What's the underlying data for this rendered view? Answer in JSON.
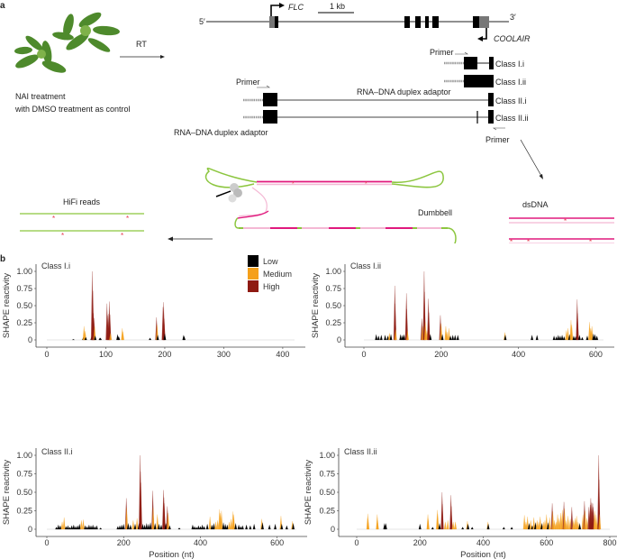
{
  "panel_a": {
    "label": "a",
    "gene_5prime": "5′",
    "gene_3prime": "3′",
    "flc_label": "FLC",
    "coolair_label": "COOLAIR",
    "scale_bar_label": "1 kb",
    "rt_label": "RT",
    "treatment_line1": "NAI treatment",
    "treatment_line2": "with DMSO treatment as control",
    "primer_label": "Primer",
    "adaptor_label": "RNA–DNA duplex adaptor",
    "classes": [
      "Class I.i",
      "Class I.ii",
      "Class II.i",
      "Class II.ii"
    ],
    "dsdna_label": "dsDNA",
    "dumbbell_label": "Dumbbell",
    "hifi_label": "HiFi reads",
    "colors": {
      "magenta": "#e0197d",
      "pink": "#f4b8d4",
      "green": "#8cc63f",
      "star": "#e8384f"
    }
  },
  "panel_b": {
    "label": "b"
  },
  "chart_data": [
    {
      "type": "bar",
      "title": "Class I.i",
      "xlabel": "",
      "ylabel": "SHAPE reactivity",
      "xlim": [
        0,
        420
      ],
      "ylim": [
        0,
        1.0
      ],
      "xticks": [
        "0",
        "100",
        "200",
        "300",
        "400"
      ],
      "yticks": [
        "0",
        "0.25",
        "0.50",
        "0.75",
        "1.00"
      ],
      "legend": {
        "placement": "top-right",
        "entries": [
          "Low",
          "Medium",
          "High"
        ]
      },
      "points": [
        [
          45,
          0.01
        ],
        [
          62,
          0.04
        ],
        [
          63,
          0.2
        ],
        [
          65,
          0.13
        ],
        [
          66,
          0.04
        ],
        [
          76,
          0.05
        ],
        [
          77,
          1.0
        ],
        [
          78,
          0.72
        ],
        [
          79,
          0.39
        ],
        [
          80,
          0.32
        ],
        [
          81,
          0.2
        ],
        [
          82,
          0.06
        ],
        [
          90,
          0.03
        ],
        [
          91,
          0.03
        ],
        [
          102,
          0.53
        ],
        [
          103,
          0.36
        ],
        [
          105,
          0.38
        ],
        [
          106,
          0.56
        ],
        [
          107,
          0.37
        ],
        [
          108,
          0.1
        ],
        [
          120,
          0.08
        ],
        [
          122,
          0.05
        ],
        [
          128,
          0.17
        ],
        [
          129,
          0.12
        ],
        [
          175,
          0.03
        ],
        [
          186,
          0.33
        ],
        [
          187,
          0.22
        ],
        [
          188,
          0.07
        ],
        [
          197,
          0.48
        ],
        [
          198,
          0.55
        ],
        [
          199,
          0.31
        ],
        [
          200,
          0.09
        ],
        [
          232,
          0.07
        ],
        [
          233,
          0.05
        ]
      ]
    },
    {
      "type": "bar",
      "title": "Class I.ii",
      "xlabel": "",
      "ylabel": "SHAPE reactivity",
      "xlim": [
        0,
        620
      ],
      "ylim": [
        0,
        1.0
      ],
      "xticks": [
        "0",
        "200",
        "400",
        "600"
      ],
      "yticks": [
        "0",
        "0.25",
        "0.50",
        "0.75",
        "1.00"
      ],
      "points": [
        [
          32,
          0.08
        ],
        [
          38,
          0.06
        ],
        [
          45,
          0.07
        ],
        [
          55,
          0.07
        ],
        [
          62,
          0.06
        ],
        [
          66,
          0.1
        ],
        [
          70,
          0.08
        ],
        [
          80,
          0.79
        ],
        [
          81,
          0.53
        ],
        [
          82,
          0.15
        ],
        [
          95,
          0.08
        ],
        [
          100,
          0.07
        ],
        [
          104,
          0.08
        ],
        [
          110,
          0.68
        ],
        [
          111,
          0.45
        ],
        [
          113,
          0.13
        ],
        [
          150,
          0.31
        ],
        [
          152,
          0.2
        ],
        [
          156,
          1.0
        ],
        [
          157,
          0.7
        ],
        [
          159,
          0.26
        ],
        [
          163,
          0.14
        ],
        [
          167,
          0.6
        ],
        [
          168,
          0.4
        ],
        [
          172,
          0.08
        ],
        [
          198,
          0.36
        ],
        [
          200,
          0.24
        ],
        [
          203,
          0.08
        ],
        [
          212,
          0.2
        ],
        [
          215,
          0.12
        ],
        [
          220,
          0.17
        ],
        [
          224,
          0.06
        ],
        [
          230,
          0.07
        ],
        [
          236,
          0.07
        ],
        [
          243,
          0.07
        ],
        [
          365,
          0.11
        ],
        [
          366,
          0.07
        ],
        [
          435,
          0.07
        ],
        [
          448,
          0.07
        ],
        [
          492,
          0.06
        ],
        [
          498,
          0.05
        ],
        [
          503,
          0.07
        ],
        [
          508,
          0.06
        ],
        [
          513,
          0.07
        ],
        [
          518,
          0.05
        ],
        [
          524,
          0.14
        ],
        [
          528,
          0.17
        ],
        [
          532,
          0.08
        ],
        [
          536,
          0.29
        ],
        [
          538,
          0.22
        ],
        [
          543,
          0.06
        ],
        [
          548,
          0.05
        ],
        [
          552,
          0.59
        ],
        [
          553,
          0.39
        ],
        [
          558,
          0.07
        ],
        [
          565,
          0.04
        ],
        [
          578,
          0.06
        ],
        [
          584,
          0.26
        ],
        [
          587,
          0.17
        ],
        [
          590,
          0.2
        ],
        [
          594,
          0.09
        ],
        [
          598,
          0.08
        ],
        [
          603,
          0.06
        ]
      ]
    },
    {
      "type": "bar",
      "title": "Class II.i",
      "xlabel": "Position (nt)",
      "ylabel": "SHAPE reactivity",
      "xlim": [
        0,
        650
      ],
      "ylim": [
        0,
        1.0
      ],
      "xticks": [
        "0",
        "200",
        "400",
        "600"
      ],
      "yticks": [
        "0",
        "0.25",
        "0.50",
        "0.75",
        "1.00"
      ],
      "points": [
        [
          25,
          0.03
        ],
        [
          30,
          0.06
        ],
        [
          35,
          0.05
        ],
        [
          40,
          0.1
        ],
        [
          45,
          0.16
        ],
        [
          50,
          0.04
        ],
        [
          55,
          0.05
        ],
        [
          60,
          0.03
        ],
        [
          65,
          0.05
        ],
        [
          70,
          0.06
        ],
        [
          75,
          0.04
        ],
        [
          80,
          0.05
        ],
        [
          85,
          0.07
        ],
        [
          90,
          0.12
        ],
        [
          95,
          0.13
        ],
        [
          100,
          0.05
        ],
        [
          105,
          0.04
        ],
        [
          110,
          0.06
        ],
        [
          115,
          0.05
        ],
        [
          120,
          0.06
        ],
        [
          125,
          0.04
        ],
        [
          130,
          0.05
        ],
        [
          140,
          0.02
        ],
        [
          185,
          0.04
        ],
        [
          190,
          0.05
        ],
        [
          195,
          0.06
        ],
        [
          200,
          0.07
        ],
        [
          207,
          0.42
        ],
        [
          208,
          0.29
        ],
        [
          212,
          0.08
        ],
        [
          218,
          0.06
        ],
        [
          225,
          0.12
        ],
        [
          230,
          0.07
        ],
        [
          235,
          0.15
        ],
        [
          240,
          0.08
        ],
        [
          243,
          1.0
        ],
        [
          244,
          0.78
        ],
        [
          245,
          0.63
        ],
        [
          250,
          0.07
        ],
        [
          255,
          0.06
        ],
        [
          260,
          0.08
        ],
        [
          265,
          0.07
        ],
        [
          270,
          0.09
        ],
        [
          276,
          0.52
        ],
        [
          277,
          0.29
        ],
        [
          282,
          0.08
        ],
        [
          288,
          0.2
        ],
        [
          292,
          0.07
        ],
        [
          298,
          0.06
        ],
        [
          304,
          0.53
        ],
        [
          305,
          0.43
        ],
        [
          306,
          0.35
        ],
        [
          310,
          0.08
        ],
        [
          314,
          0.31
        ],
        [
          316,
          0.22
        ],
        [
          320,
          0.05
        ],
        [
          345,
          0.02
        ],
        [
          380,
          0.06
        ],
        [
          385,
          0.04
        ],
        [
          390,
          0.03
        ],
        [
          395,
          0.05
        ],
        [
          400,
          0.04
        ],
        [
          405,
          0.06
        ],
        [
          410,
          0.04
        ],
        [
          418,
          0.07
        ],
        [
          425,
          0.17
        ],
        [
          430,
          0.06
        ],
        [
          435,
          0.08
        ],
        [
          440,
          0.1
        ],
        [
          445,
          0.12
        ],
        [
          450,
          0.27
        ],
        [
          452,
          0.22
        ],
        [
          455,
          0.25
        ],
        [
          460,
          0.09
        ],
        [
          465,
          0.07
        ],
        [
          470,
          0.06
        ],
        [
          475,
          0.1
        ],
        [
          480,
          0.14
        ],
        [
          485,
          0.24
        ],
        [
          487,
          0.2
        ],
        [
          492,
          0.08
        ],
        [
          500,
          0.06
        ],
        [
          505,
          0.04
        ],
        [
          510,
          0.05
        ],
        [
          520,
          0.06
        ],
        [
          530,
          0.05
        ],
        [
          540,
          0.07
        ],
        [
          560,
          0.14
        ],
        [
          562,
          0.09
        ],
        [
          580,
          0.06
        ],
        [
          595,
          0.07
        ],
        [
          610,
          0.18
        ],
        [
          612,
          0.07
        ],
        [
          625,
          0.05
        ],
        [
          640,
          0.11
        ],
        [
          642,
          0.08
        ]
      ]
    },
    {
      "type": "bar",
      "title": "Class II.ii",
      "xlabel": "Position (nt)",
      "ylabel": "SHAPE reactivity",
      "xlim": [
        0,
        800
      ],
      "ylim": [
        0,
        1.0
      ],
      "xticks": [
        "0",
        "200",
        "400",
        "600",
        "800"
      ],
      "yticks": [
        "0",
        "0.25",
        "0.50",
        "0.75",
        "1.00"
      ],
      "points": [
        [
          35,
          0.21
        ],
        [
          36,
          0.14
        ],
        [
          65,
          0.2
        ],
        [
          66,
          0.12
        ],
        [
          88,
          0.08
        ],
        [
          92,
          0.08
        ],
        [
          200,
          0.07
        ],
        [
          225,
          0.2
        ],
        [
          226,
          0.14
        ],
        [
          240,
          0.03
        ],
        [
          255,
          0.26
        ],
        [
          256,
          0.21
        ],
        [
          262,
          0.08
        ],
        [
          270,
          0.5
        ],
        [
          271,
          0.34
        ],
        [
          280,
          0.1
        ],
        [
          288,
          0.12
        ],
        [
          298,
          0.46
        ],
        [
          299,
          0.31
        ],
        [
          305,
          0.1
        ],
        [
          312,
          0.1
        ],
        [
          335,
          0.03
        ],
        [
          350,
          0.11
        ],
        [
          352,
          0.07
        ],
        [
          365,
          0.03
        ],
        [
          415,
          0.1
        ],
        [
          416,
          0.07
        ],
        [
          465,
          0.03
        ],
        [
          490,
          0.03
        ],
        [
          530,
          0.19
        ],
        [
          535,
          0.1
        ],
        [
          540,
          0.17
        ],
        [
          545,
          0.08
        ],
        [
          550,
          0.12
        ],
        [
          555,
          0.05
        ],
        [
          560,
          0.16
        ],
        [
          565,
          0.09
        ],
        [
          570,
          0.12
        ],
        [
          575,
          0.1
        ],
        [
          580,
          0.17
        ],
        [
          585,
          0.08
        ],
        [
          590,
          0.1
        ],
        [
          595,
          0.12
        ],
        [
          600,
          0.2
        ],
        [
          605,
          0.09
        ],
        [
          610,
          0.16
        ],
        [
          618,
          0.35
        ],
        [
          620,
          0.24
        ],
        [
          625,
          0.12
        ],
        [
          630,
          0.1
        ],
        [
          635,
          0.2
        ],
        [
          640,
          0.15
        ],
        [
          645,
          0.22
        ],
        [
          650,
          0.26
        ],
        [
          655,
          0.37
        ],
        [
          657,
          0.28
        ],
        [
          662,
          0.12
        ],
        [
          668,
          0.18
        ],
        [
          675,
          0.14
        ],
        [
          680,
          0.3
        ],
        [
          685,
          0.12
        ],
        [
          690,
          0.15
        ],
        [
          695,
          0.18
        ],
        [
          700,
          0.1
        ],
        [
          705,
          0.08
        ],
        [
          715,
          0.2
        ],
        [
          720,
          0.38
        ],
        [
          722,
          0.25
        ],
        [
          728,
          0.15
        ],
        [
          734,
          0.3
        ],
        [
          738,
          0.33
        ],
        [
          740,
          0.42
        ],
        [
          743,
          0.36
        ],
        [
          746,
          0.35
        ],
        [
          748,
          0.3
        ],
        [
          752,
          0.25
        ],
        [
          757,
          0.2
        ],
        [
          762,
          0.1
        ],
        [
          765,
          1.0
        ],
        [
          766,
          0.67
        ],
        [
          768,
          0.2
        ]
      ]
    }
  ],
  "colors": {
    "low": "#000000",
    "medium": "#f5a01a",
    "high": "#8e1a12",
    "baseline": "#dddddd"
  }
}
